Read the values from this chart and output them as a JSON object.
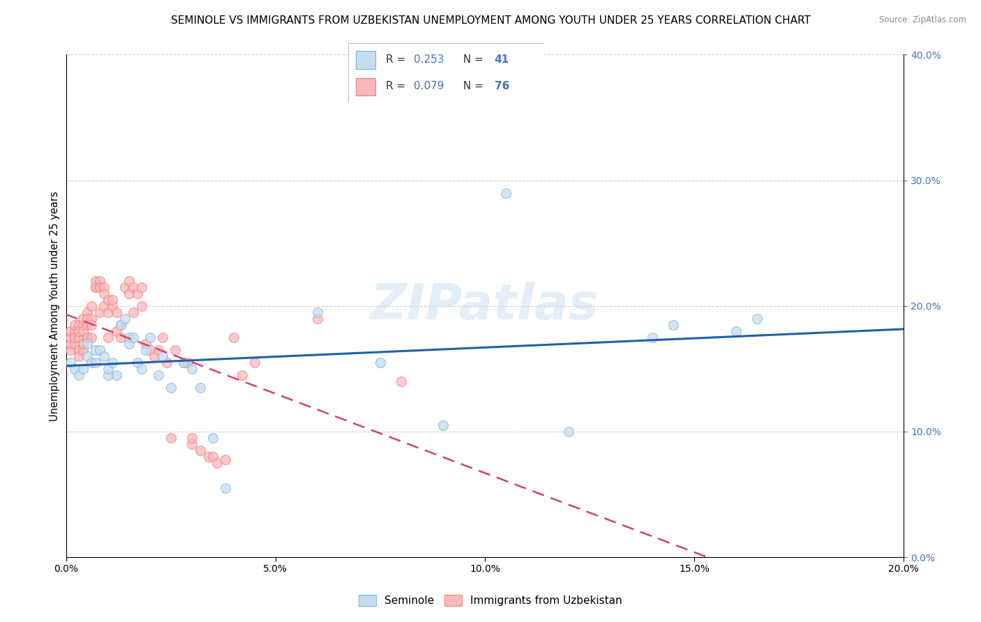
{
  "title": "SEMINOLE VS IMMIGRANTS FROM UZBEKISTAN UNEMPLOYMENT AMONG YOUTH UNDER 25 YEARS CORRELATION CHART",
  "source": "Source: ZipAtlas.com",
  "ylabel": "Unemployment Among Youth under 25 years",
  "xlabel_seminole": "Seminole",
  "xlabel_uzbekistan": "Immigrants from Uzbekistan",
  "xlim": [
    0.0,
    0.2
  ],
  "ylim": [
    0.0,
    0.4
  ],
  "xticks": [
    0.0,
    0.05,
    0.1,
    0.15,
    0.2
  ],
  "yticks": [
    0.0,
    0.1,
    0.2,
    0.3,
    0.4
  ],
  "R_seminole": 0.253,
  "N_seminole": 41,
  "R_uzbekistan": 0.079,
  "N_uzbekistan": 76,
  "color_seminole_edge": "#7ab8d9",
  "color_uzbekistan_edge": "#f08080",
  "color_seminole_fill": "#c6dcef",
  "color_uzbekistan_fill": "#f9b8bb",
  "trendline_seminole_color": "#2060a8",
  "trendline_uzbekistan_color": "#d44070",
  "seminole_x": [
    0.001,
    0.002,
    0.003,
    0.004,
    0.005,
    0.005,
    0.006,
    0.007,
    0.007,
    0.008,
    0.009,
    0.01,
    0.01,
    0.011,
    0.012,
    0.013,
    0.014,
    0.015,
    0.015,
    0.016,
    0.017,
    0.018,
    0.019,
    0.02,
    0.022,
    0.023,
    0.025,
    0.028,
    0.03,
    0.032,
    0.035,
    0.038,
    0.06,
    0.075,
    0.09,
    0.105,
    0.12,
    0.14,
    0.145,
    0.16,
    0.165
  ],
  "seminole_y": [
    0.155,
    0.15,
    0.145,
    0.15,
    0.16,
    0.17,
    0.155,
    0.155,
    0.165,
    0.165,
    0.16,
    0.145,
    0.15,
    0.155,
    0.145,
    0.185,
    0.19,
    0.175,
    0.17,
    0.175,
    0.155,
    0.15,
    0.165,
    0.175,
    0.145,
    0.16,
    0.135,
    0.155,
    0.15,
    0.135,
    0.095,
    0.055,
    0.195,
    0.155,
    0.105,
    0.29,
    0.1,
    0.175,
    0.185,
    0.18,
    0.19
  ],
  "uzbekistan_x": [
    0.001,
    0.001,
    0.001,
    0.001,
    0.002,
    0.002,
    0.002,
    0.002,
    0.002,
    0.003,
    0.003,
    0.003,
    0.003,
    0.003,
    0.004,
    0.004,
    0.004,
    0.004,
    0.004,
    0.005,
    0.005,
    0.005,
    0.005,
    0.005,
    0.006,
    0.006,
    0.006,
    0.006,
    0.007,
    0.007,
    0.007,
    0.008,
    0.008,
    0.008,
    0.009,
    0.009,
    0.009,
    0.01,
    0.01,
    0.01,
    0.011,
    0.011,
    0.012,
    0.012,
    0.013,
    0.013,
    0.014,
    0.015,
    0.015,
    0.016,
    0.016,
    0.017,
    0.018,
    0.018,
    0.019,
    0.02,
    0.021,
    0.022,
    0.023,
    0.024,
    0.025,
    0.026,
    0.028,
    0.029,
    0.03,
    0.03,
    0.032,
    0.034,
    0.035,
    0.036,
    0.038,
    0.04,
    0.042,
    0.045,
    0.06,
    0.08
  ],
  "uzbekistan_y": [
    0.165,
    0.17,
    0.175,
    0.18,
    0.17,
    0.175,
    0.18,
    0.185,
    0.175,
    0.185,
    0.175,
    0.18,
    0.165,
    0.16,
    0.185,
    0.18,
    0.165,
    0.19,
    0.17,
    0.195,
    0.175,
    0.185,
    0.19,
    0.175,
    0.19,
    0.185,
    0.175,
    0.2,
    0.215,
    0.22,
    0.215,
    0.22,
    0.215,
    0.195,
    0.215,
    0.2,
    0.21,
    0.205,
    0.195,
    0.175,
    0.2,
    0.205,
    0.195,
    0.18,
    0.175,
    0.185,
    0.215,
    0.21,
    0.22,
    0.215,
    0.195,
    0.21,
    0.2,
    0.215,
    0.17,
    0.165,
    0.16,
    0.165,
    0.175,
    0.155,
    0.095,
    0.165,
    0.155,
    0.155,
    0.09,
    0.095,
    0.085,
    0.08,
    0.08,
    0.075,
    0.078,
    0.175,
    0.145,
    0.155,
    0.19,
    0.14
  ],
  "watermark_text": "ZIPatlas",
  "watermark_fontsize": 52,
  "background_color": "#ffffff",
  "grid_color": "#cccccc",
  "title_fontsize": 11,
  "axis_label_fontsize": 10.5,
  "tick_fontsize": 10,
  "legend_fontsize": 11,
  "right_tick_color": "#4472c4"
}
